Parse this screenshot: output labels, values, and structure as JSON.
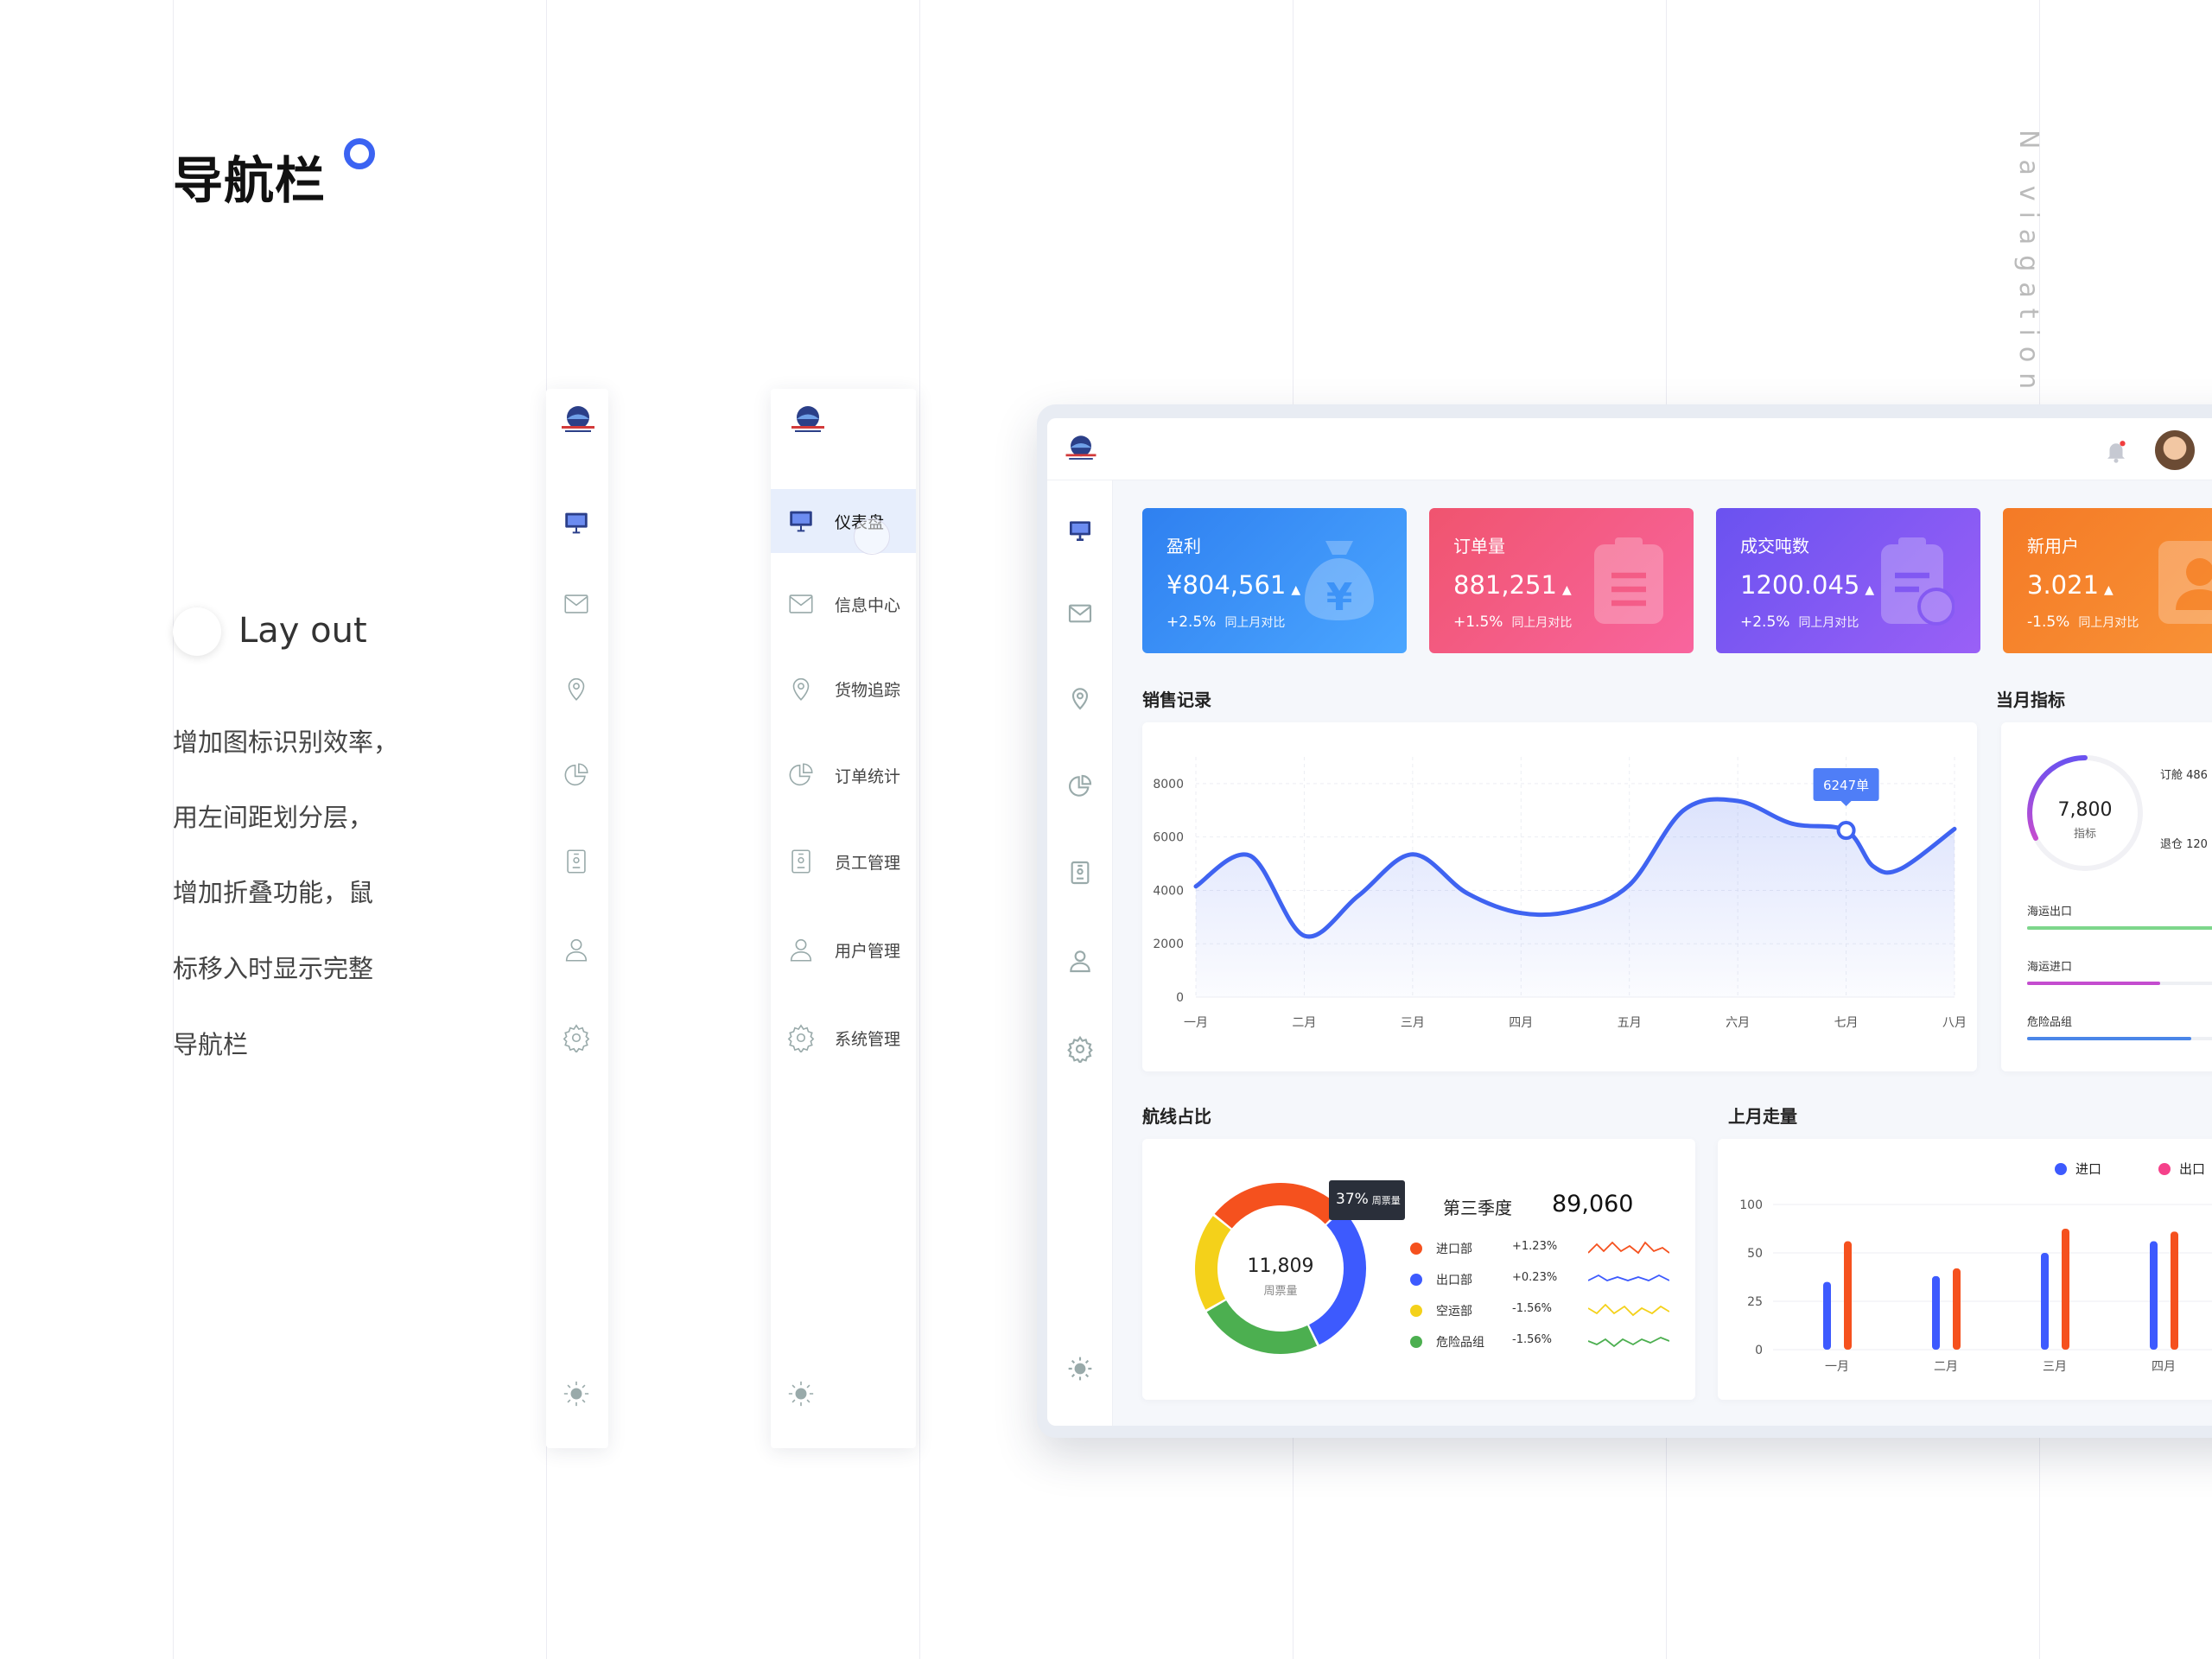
{
  "page": {
    "title": "导航栏",
    "section_label": "Lay out",
    "description": [
      "增加图标识别效率，",
      "用左间距划分层，",
      "增加折叠功能，鼠",
      "标移入时显示完整",
      "导航栏"
    ],
    "side_text": "Naviagation ba"
  },
  "nav": {
    "items": [
      {
        "label": "仪表盘",
        "icon": "monitor-icon",
        "active": true
      },
      {
        "label": "信息中心",
        "icon": "mail-icon"
      },
      {
        "label": "货物追踪",
        "icon": "location-pin-icon"
      },
      {
        "label": "订单统计",
        "icon": "pie-chart-icon"
      },
      {
        "label": "员工管理",
        "icon": "id-badge-icon"
      },
      {
        "label": "用户管理",
        "icon": "user-icon"
      },
      {
        "label": "系统管理",
        "icon": "gear-icon"
      }
    ],
    "bottom_icon": "sun-icon"
  },
  "dashboard": {
    "stats": [
      {
        "title": "盈利",
        "value": "¥804,561",
        "change": "+2.5%",
        "compare": "同上月对比",
        "color_from": "#2f80f0",
        "color_to": "#4ba6ff",
        "icon": "money-bag-icon"
      },
      {
        "title": "订单量",
        "value": "881,251",
        "change": "+1.5%",
        "compare": "同上月对比",
        "color_from": "#f0546f",
        "color_to": "#f8659e",
        "icon": "clipboard-icon"
      },
      {
        "title": "成交吨数",
        "value": "1200.045",
        "change": "+2.5%",
        "compare": "同上月对比",
        "color_from": "#6a52f0",
        "color_to": "#9a60f6",
        "icon": "clipboard-check-icon"
      },
      {
        "title": "新用户",
        "value": "3.021",
        "change": "-1.5%",
        "compare": "同上月对比",
        "color_from": "#f47a26",
        "color_to": "#f99538",
        "icon": "user-icon"
      }
    ],
    "sales_title": "销售记录",
    "monthly_title": "当月指标",
    "route_title": "航线占比",
    "lastmonth_title": "上月走量",
    "indicator": {
      "value": "7,800",
      "label": "指标",
      "side": [
        "订舱 486",
        "退仓 120"
      ],
      "bars": [
        {
          "label": "海运出口",
          "fill": 0.95,
          "color": "#7dd68b"
        },
        {
          "label": "海运进口",
          "fill": 0.55,
          "color": "#c44ccf"
        },
        {
          "label": "危险品组",
          "fill": 0.68,
          "color": "#4a86e8"
        }
      ]
    },
    "route": {
      "center_value": "11,809",
      "center_label": "周票量",
      "tooltip_value": "37%",
      "tooltip_label": "周票量",
      "quarter_label": "第三季度",
      "quarter_value": "89,060",
      "items": [
        {
          "name": "进口部",
          "change": "+1.23%",
          "color": "#f5511e"
        },
        {
          "name": "出口部",
          "change": "+0.23%",
          "color": "#3d5afe"
        },
        {
          "name": "空运部",
          "change": "-1.56%",
          "color": "#f4d11a"
        },
        {
          "name": "危险品组",
          "change": "-1.56%",
          "color": "#4caf50"
        }
      ],
      "legend": {
        "import": "进口",
        "export": "出口"
      }
    },
    "topbar": {
      "bell_icon": "bell-icon",
      "avatar": "avatar"
    }
  },
  "chart_data": [
    {
      "type": "line",
      "title": "销售记录",
      "categories": [
        "一月",
        "二月",
        "三月",
        "四月",
        "五月",
        "六月",
        "七月",
        "八月"
      ],
      "yticks": [
        0,
        2000,
        4000,
        6000,
        8000
      ],
      "ylim": [
        0,
        9000
      ],
      "x": [
        0,
        0.5,
        1,
        1.5,
        2,
        2.5,
        3,
        3.5,
        4,
        4.5,
        5,
        5.5,
        6,
        6.25,
        6.5,
        7
      ],
      "y": [
        4150,
        5300,
        2300,
        3800,
        5350,
        3900,
        3150,
        3250,
        4200,
        7000,
        7350,
        6500,
        6247,
        4900,
        4800,
        6300
      ],
      "highlight": {
        "x": 6,
        "label": "6247单"
      },
      "color": "#3f63f1",
      "grid": true
    },
    {
      "type": "pie",
      "title": "航线占比",
      "labels": [
        "进口部",
        "出口部",
        "危险品组",
        "空运部"
      ],
      "values": [
        27,
        30,
        24,
        19
      ],
      "colors": [
        "#f5511e",
        "#3d5afe",
        "#4caf50",
        "#f4d11a"
      ]
    },
    {
      "type": "bar",
      "title": "上月走量",
      "categories": [
        "一月",
        "二月",
        "三月",
        "四月"
      ],
      "yticks": [
        0,
        25,
        50,
        100
      ],
      "series": [
        {
          "name": "进口",
          "color": "#3d5afe",
          "values": [
            35,
            38,
            50,
            62
          ]
        },
        {
          "name": "出口",
          "color": "#f5511e",
          "values": [
            62,
            42,
            75,
            72
          ]
        }
      ]
    }
  ]
}
